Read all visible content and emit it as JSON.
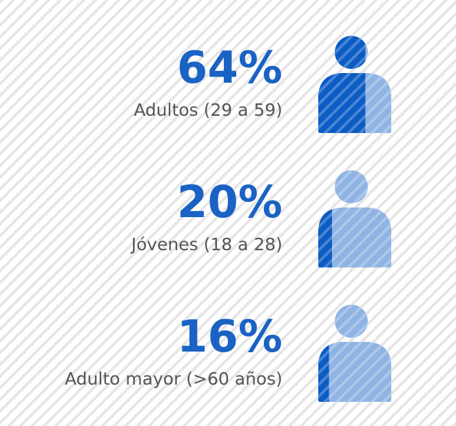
{
  "chart_data": {
    "type": "pictogram",
    "categories": [
      "Adultos (29 a 59)",
      "Jóvenes (18 a 28)",
      "Adulto mayor (>60 años)"
    ],
    "values": [
      64,
      20,
      16
    ],
    "value_labels": [
      "64%",
      "20%",
      "16%"
    ],
    "color": "#0b5cc4",
    "base_color": "#8fb4e3"
  }
}
